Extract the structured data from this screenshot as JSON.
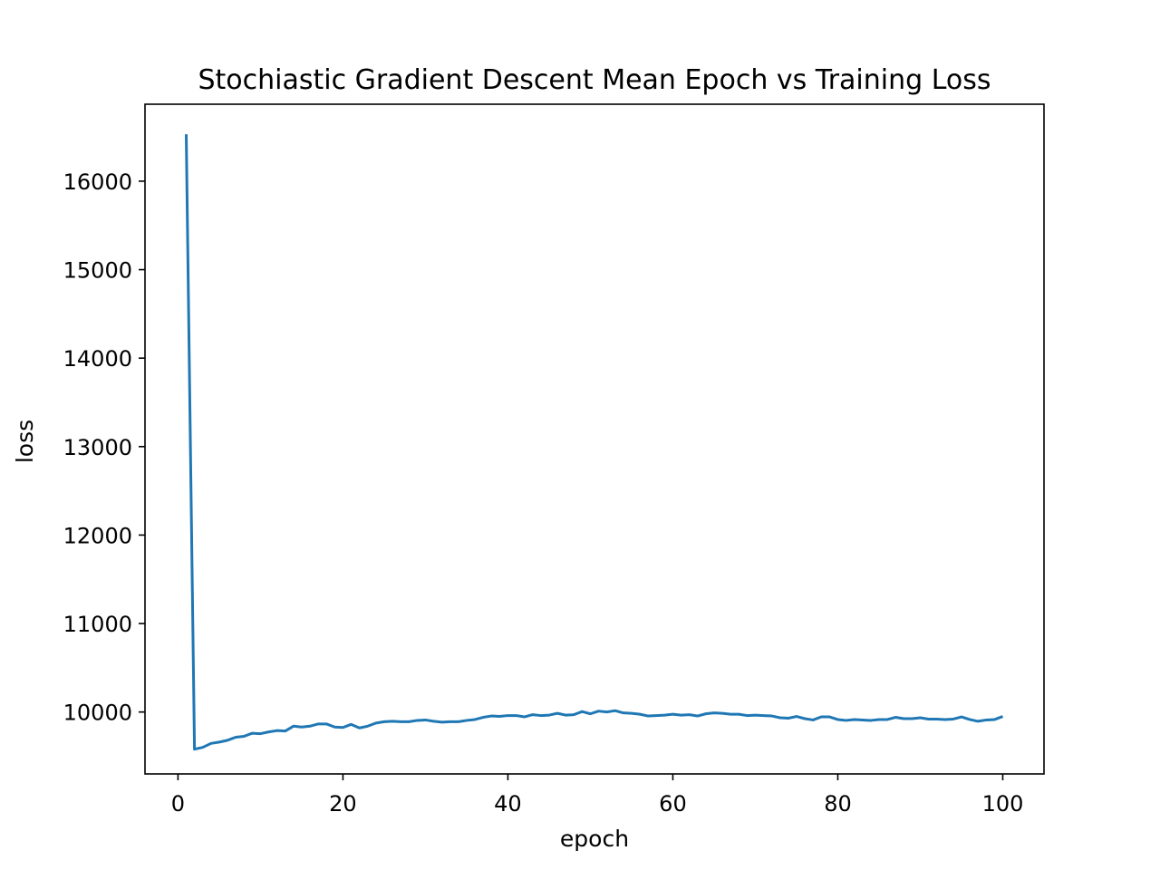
{
  "chart_data": {
    "type": "line",
    "title": "Stochiastic Gradient Descent Mean Epoch vs Training Loss",
    "xlabel": "epoch",
    "ylabel": "loss",
    "xlim": [
      -4,
      105
    ],
    "ylim": [
      9300,
      16870
    ],
    "xticks": [
      0,
      20,
      40,
      60,
      80,
      100
    ],
    "yticks": [
      10000,
      11000,
      12000,
      13000,
      14000,
      15000,
      16000
    ],
    "grid": false,
    "colors": {
      "line": "#1f77b4",
      "axes": "#000000",
      "background": "#ffffff"
    },
    "series": [
      {
        "x": [
          1,
          2,
          3,
          4,
          5,
          6,
          7,
          8,
          9,
          10,
          11,
          12,
          13,
          14,
          15,
          16,
          17,
          18,
          19,
          20,
          21,
          22,
          23,
          24,
          25,
          26,
          27,
          28,
          29,
          30,
          31,
          32,
          33,
          34,
          35,
          36,
          37,
          38,
          39,
          40,
          41,
          42,
          43,
          44,
          45,
          46,
          47,
          48,
          49,
          50,
          51,
          52,
          53,
          54,
          55,
          56,
          57,
          58,
          59,
          60,
          61,
          62,
          63,
          64,
          65,
          66,
          67,
          68,
          69,
          70,
          71,
          72,
          73,
          74,
          75,
          76,
          77,
          78,
          79,
          80,
          81,
          82,
          83,
          84,
          85,
          86,
          87,
          88,
          89,
          90,
          91,
          92,
          93,
          94,
          95,
          96,
          97,
          98,
          99,
          100
        ],
        "values": [
          16530,
          9580,
          9600,
          9645,
          9660,
          9680,
          9715,
          9725,
          9760,
          9755,
          9775,
          9790,
          9785,
          9840,
          9830,
          9840,
          9865,
          9865,
          9830,
          9825,
          9860,
          9820,
          9840,
          9875,
          9890,
          9895,
          9890,
          9890,
          9905,
          9910,
          9895,
          9885,
          9890,
          9890,
          9905,
          9915,
          9940,
          9955,
          9950,
          9960,
          9960,
          9945,
          9970,
          9960,
          9965,
          9985,
          9965,
          9970,
          10005,
          9980,
          10010,
          10000,
          10015,
          9990,
          9985,
          9975,
          9955,
          9960,
          9965,
          9975,
          9965,
          9970,
          9955,
          9980,
          9990,
          9985,
          9975,
          9975,
          9960,
          9965,
          9960,
          9955,
          9935,
          9930,
          9950,
          9925,
          9910,
          9945,
          9945,
          9915,
          9905,
          9915,
          9910,
          9905,
          9915,
          9915,
          9940,
          9925,
          9925,
          9935,
          9920,
          9920,
          9915,
          9920,
          9945,
          9915,
          9895,
          9910,
          9915,
          9950
        ]
      }
    ]
  }
}
